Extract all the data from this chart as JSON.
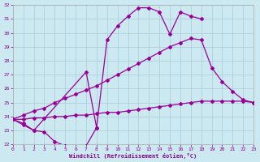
{
  "bg_color": "#cce8f0",
  "grid_color": "#a8ccd8",
  "line_color": "#990099",
  "marker": "D",
  "markersize": 2.0,
  "linewidth": 0.9,
  "xlim": [
    0,
    23
  ],
  "ylim": [
    22,
    32
  ],
  "yticks": [
    22,
    23,
    24,
    25,
    26,
    27,
    28,
    29,
    30,
    31,
    32
  ],
  "xticks": [
    0,
    1,
    2,
    3,
    4,
    5,
    6,
    7,
    8,
    9,
    10,
    11,
    12,
    13,
    14,
    15,
    16,
    17,
    18,
    19,
    20,
    21,
    22,
    23
  ],
  "xlabel": "Windchill (Refroidissement éolien,°C)",
  "tick_color": "#880088",
  "line1_x": [
    0,
    1,
    2,
    3,
    4,
    5,
    6,
    7,
    8
  ],
  "line1_y": [
    23.8,
    23.4,
    23.0,
    22.9,
    22.2,
    21.9,
    21.8,
    21.9,
    23.2
  ],
  "line2_x": [
    0,
    1,
    2,
    7,
    8,
    9,
    10,
    11,
    12,
    13,
    14,
    15,
    16,
    17,
    18
  ],
  "line2_y": [
    23.8,
    23.5,
    23.0,
    27.2,
    23.2,
    29.5,
    30.5,
    31.2,
    31.8,
    31.8,
    31.5,
    29.9,
    31.5,
    31.2,
    31.0
  ],
  "line3_x": [
    0,
    1,
    2,
    3,
    4,
    5,
    6,
    7,
    8,
    9,
    10,
    11,
    12,
    13,
    14,
    15,
    16,
    17,
    18,
    19,
    20,
    21,
    22,
    23
  ],
  "line3_y": [
    23.8,
    24.1,
    24.4,
    24.6,
    25.0,
    25.3,
    25.6,
    25.9,
    26.2,
    26.6,
    27.0,
    27.4,
    27.8,
    28.2,
    28.6,
    29.0,
    29.3,
    29.6,
    29.5,
    27.5,
    26.5,
    25.8,
    25.2,
    25.0
  ],
  "line4_x": [
    0,
    1,
    2,
    3,
    4,
    5,
    6,
    7,
    8,
    9,
    10,
    11,
    12,
    13,
    14,
    15,
    16,
    17,
    18,
    19,
    20,
    21,
    22,
    23
  ],
  "line4_y": [
    23.8,
    23.8,
    23.9,
    23.9,
    24.0,
    24.0,
    24.1,
    24.1,
    24.2,
    24.3,
    24.3,
    24.4,
    24.5,
    24.6,
    24.7,
    24.8,
    24.9,
    25.0,
    25.1,
    25.1,
    25.1,
    25.1,
    25.1,
    25.0
  ]
}
